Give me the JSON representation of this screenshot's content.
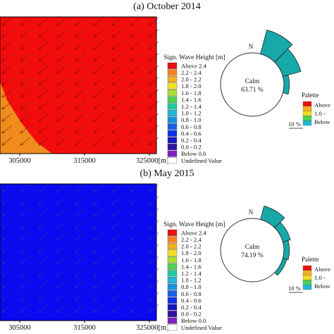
{
  "panels": [
    {
      "title": "(a) October 2014",
      "x_ticks": [
        "305000",
        "315000",
        "325000[m]"
      ],
      "legend_title": "Sign. Wave Height [m]",
      "map_fill": "#f20d0d",
      "map_secondary_fill": "#f08c1c",
      "rose_north": "N",
      "calm_label": "Calm",
      "calm_value": "63.71 %",
      "palette_title": "Palette",
      "palette_labels": [
        "Above",
        "1.0 -",
        "Below"
      ],
      "scale_label": "10 %"
    },
    {
      "title": "(b) May 2015",
      "x_ticks": [
        "305000",
        "315000",
        "325000[m]"
      ],
      "legend_title": "Sign. Wave Height [m]",
      "map_fill": "#0a0af0",
      "rose_north": "N",
      "calm_label": "Calm",
      "calm_value": "74.19 %",
      "palette_title": "Palette",
      "palette_labels": [
        "Above",
        "1.0 -",
        "Below"
      ],
      "scale_label": "10 %"
    }
  ],
  "legend": [
    {
      "label": "Above 2.4",
      "color": "#e81010"
    },
    {
      "label": "2.2 - 2.4",
      "color": "#f58220"
    },
    {
      "label": "2.0 - 2.2",
      "color": "#f2b020"
    },
    {
      "label": "1.8 - 2.0",
      "color": "#f0e020"
    },
    {
      "label": "1.6 - 1.8",
      "color": "#a8e030"
    },
    {
      "label": "1.4 - 1.6",
      "color": "#50d050"
    },
    {
      "label": "1.2 - 1.4",
      "color": "#20c8a0"
    },
    {
      "label": "1.0 - 1.2",
      "color": "#20b8d8"
    },
    {
      "label": "0.8 - 1.0",
      "color": "#1890e0"
    },
    {
      "label": "0.6 - 0.8",
      "color": "#1860e8"
    },
    {
      "label": "0.4 - 0.6",
      "color": "#1030e8"
    },
    {
      "label": "0.2 - 0.4",
      "color": "#1818c0"
    },
    {
      "label": "0.0 - 0.2",
      "color": "#3010a0"
    },
    {
      "label": "Below 0.0",
      "color": "#8020c0"
    },
    {
      "label": "Undefined Value",
      "color": "#ffffff"
    }
  ],
  "palette_colors": [
    "#e81010",
    "#f2b020",
    "#f0e020",
    "#50d050",
    "#20b8d8"
  ],
  "chart_data": [
    {
      "type": "heatmap",
      "title": "(a) October 2014",
      "xlabel": "[m]",
      "x_ticks": [
        305000,
        315000,
        325000
      ],
      "legend_title": "Sign. Wave Height [m]",
      "dominant_class": "Above 2.4",
      "secondary_class": "2.2 - 2.4",
      "wave_rose": {
        "calm_percent": 63.71,
        "sectors_deg": [
          {
            "from": 15,
            "to": 45,
            "scale": 1.6
          },
          {
            "from": 45,
            "to": 75,
            "scale": 1.2
          },
          {
            "from": 75,
            "to": 105,
            "scale": 0.35
          }
        ]
      }
    },
    {
      "type": "heatmap",
      "title": "(b) May 2015",
      "xlabel": "[m]",
      "x_ticks": [
        305000,
        315000,
        325000
      ],
      "legend_title": "Sign. Wave Height [m]",
      "dominant_class": "0.4 - 0.6",
      "wave_rose": {
        "calm_percent": 74.19,
        "sectors_deg": [
          {
            "from": 15,
            "to": 45,
            "scale": 0.9
          },
          {
            "from": 45,
            "to": 75,
            "scale": 0.5
          },
          {
            "from": 75,
            "to": 105,
            "scale": 0.35
          },
          {
            "from": 105,
            "to": 135,
            "scale": 0.25
          }
        ]
      }
    }
  ]
}
